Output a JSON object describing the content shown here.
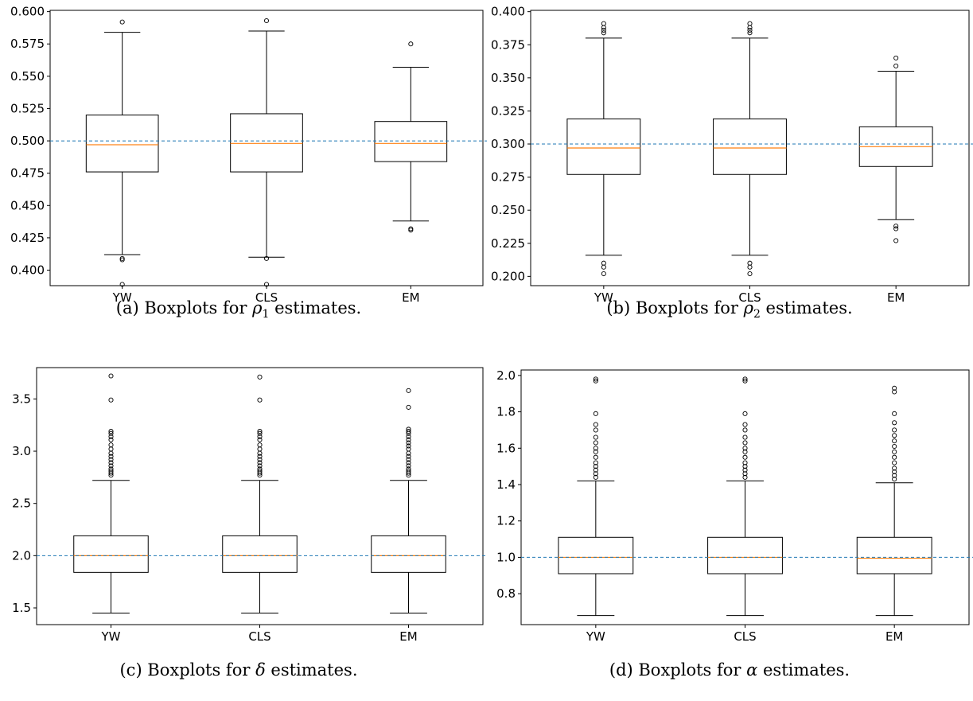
{
  "chart_data": [
    {
      "type": "boxplot",
      "caption": {
        "prefix": "(a) Boxplots for ",
        "symbol": "ρ",
        "sub": "1",
        "suffix": " estimates."
      },
      "categories": [
        "YW",
        "CLS",
        "EM"
      ],
      "ylim": [
        0.388,
        0.601
      ],
      "yticks": [
        0.4,
        0.425,
        0.45,
        0.475,
        0.5,
        0.525,
        0.55,
        0.575,
        0.6
      ],
      "ytick_labels": [
        "0.400",
        "0.425",
        "0.450",
        "0.475",
        "0.500",
        "0.525",
        "0.550",
        "0.575",
        "0.600"
      ],
      "reference_line": 0.5,
      "boxes": [
        {
          "whislo": 0.412,
          "q1": 0.476,
          "med": 0.497,
          "q3": 0.52,
          "whishi": 0.584,
          "fliers": [
            0.408,
            0.409,
            0.389,
            0.592
          ]
        },
        {
          "whislo": 0.41,
          "q1": 0.476,
          "med": 0.498,
          "q3": 0.521,
          "whishi": 0.585,
          "fliers": [
            0.409,
            0.389,
            0.593
          ]
        },
        {
          "whislo": 0.438,
          "q1": 0.484,
          "med": 0.498,
          "q3": 0.515,
          "whishi": 0.557,
          "fliers": [
            0.431,
            0.432,
            0.575
          ]
        }
      ]
    },
    {
      "type": "boxplot",
      "caption": {
        "prefix": "(b) Boxplots for ",
        "symbol": "ρ",
        "sub": "2",
        "suffix": " estimates."
      },
      "categories": [
        "YW",
        "CLS",
        "EM"
      ],
      "ylim": [
        0.193,
        0.401
      ],
      "yticks": [
        0.2,
        0.225,
        0.25,
        0.275,
        0.3,
        0.325,
        0.35,
        0.375,
        0.4
      ],
      "ytick_labels": [
        "0.200",
        "0.225",
        "0.250",
        "0.275",
        "0.300",
        "0.325",
        "0.350",
        "0.375",
        "0.400"
      ],
      "reference_line": 0.3,
      "boxes": [
        {
          "whislo": 0.216,
          "q1": 0.277,
          "med": 0.297,
          "q3": 0.319,
          "whishi": 0.38,
          "fliers": [
            0.21,
            0.207,
            0.202,
            0.384,
            0.386,
            0.388,
            0.391
          ]
        },
        {
          "whislo": 0.216,
          "q1": 0.277,
          "med": 0.297,
          "q3": 0.319,
          "whishi": 0.38,
          "fliers": [
            0.21,
            0.207,
            0.202,
            0.384,
            0.386,
            0.388,
            0.391
          ]
        },
        {
          "whislo": 0.243,
          "q1": 0.283,
          "med": 0.298,
          "q3": 0.313,
          "whishi": 0.355,
          "fliers": [
            0.238,
            0.236,
            0.227,
            0.359,
            0.365
          ]
        }
      ]
    },
    {
      "type": "boxplot",
      "caption": {
        "prefix": "(c) Boxplots for ",
        "symbol": "δ",
        "sub": "",
        "suffix": " estimates."
      },
      "categories": [
        "YW",
        "CLS",
        "EM"
      ],
      "ylim": [
        1.34,
        3.8
      ],
      "yticks": [
        1.5,
        2.0,
        2.5,
        3.0,
        3.5
      ],
      "ytick_labels": [
        "1.5",
        "2.0",
        "2.5",
        "3.0",
        "3.5"
      ],
      "reference_line": 2.0,
      "boxes": [
        {
          "whislo": 1.45,
          "q1": 1.84,
          "med": 2.0,
          "q3": 2.19,
          "whishi": 2.72,
          "fliers": [
            2.77,
            2.79,
            2.81,
            2.83,
            2.86,
            2.89,
            2.92,
            2.95,
            2.98,
            3.02,
            3.06,
            3.11,
            3.14,
            3.17,
            3.19,
            3.49,
            3.72
          ]
        },
        {
          "whislo": 1.45,
          "q1": 1.84,
          "med": 2.0,
          "q3": 2.19,
          "whishi": 2.72,
          "fliers": [
            2.77,
            2.79,
            2.81,
            2.83,
            2.86,
            2.89,
            2.92,
            2.95,
            2.98,
            3.02,
            3.06,
            3.11,
            3.14,
            3.17,
            3.19,
            3.49,
            3.71
          ]
        },
        {
          "whislo": 1.45,
          "q1": 1.84,
          "med": 2.0,
          "q3": 2.19,
          "whishi": 2.72,
          "fliers": [
            2.77,
            2.79,
            2.81,
            2.83,
            2.86,
            2.89,
            2.92,
            2.95,
            2.98,
            3.02,
            3.05,
            3.08,
            3.11,
            3.14,
            3.17,
            3.19,
            3.21,
            3.42,
            3.58
          ]
        }
      ]
    },
    {
      "type": "boxplot",
      "caption": {
        "prefix": "(d) Boxplots for ",
        "symbol": "α",
        "sub": "",
        "suffix": " estimates."
      },
      "categories": [
        "YW",
        "CLS",
        "EM"
      ],
      "ylim": [
        0.63,
        2.03
      ],
      "yticks": [
        0.8,
        1.0,
        1.2,
        1.4,
        1.6,
        1.8,
        2.0
      ],
      "ytick_labels": [
        "0.8",
        "1.0",
        "1.2",
        "1.4",
        "1.6",
        "1.8",
        "2.0"
      ],
      "reference_line": 1.0,
      "boxes": [
        {
          "whislo": 0.68,
          "q1": 0.91,
          "med": 1.0,
          "q3": 1.11,
          "whishi": 1.42,
          "fliers": [
            1.44,
            1.46,
            1.48,
            1.5,
            1.52,
            1.55,
            1.58,
            1.6,
            1.63,
            1.66,
            1.7,
            1.73,
            1.79,
            1.97,
            1.98
          ]
        },
        {
          "whislo": 0.68,
          "q1": 0.91,
          "med": 1.0,
          "q3": 1.11,
          "whishi": 1.42,
          "fliers": [
            1.44,
            1.46,
            1.48,
            1.5,
            1.52,
            1.55,
            1.58,
            1.6,
            1.63,
            1.66,
            1.7,
            1.73,
            1.79,
            1.97,
            1.98
          ]
        },
        {
          "whislo": 0.68,
          "q1": 0.91,
          "med": 0.995,
          "q3": 1.11,
          "whishi": 1.41,
          "fliers": [
            1.43,
            1.45,
            1.47,
            1.49,
            1.52,
            1.55,
            1.58,
            1.61,
            1.64,
            1.67,
            1.7,
            1.74,
            1.79,
            1.91,
            1.93
          ]
        }
      ]
    }
  ],
  "colors": {
    "median": "#ff7f0e",
    "reference": "#1f77b4",
    "box": "#000000"
  }
}
